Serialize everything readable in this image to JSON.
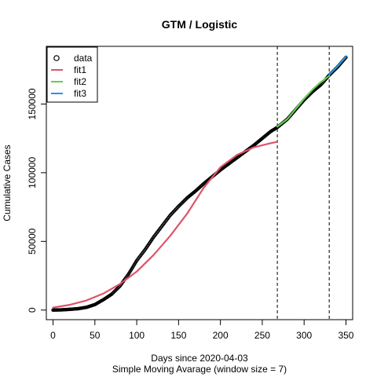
{
  "chart_data": {
    "type": "line",
    "title": "GTM / Logistic",
    "xlabel": "Days since 2020-04-03",
    "subtitle": "Simple Moving Avarage (window size = 7)",
    "ylabel": "Cumulative Cases",
    "xlim": [
      -8,
      358
    ],
    "ylim": [
      -7000,
      192000
    ],
    "x_ticks": [
      0,
      50,
      100,
      150,
      200,
      250,
      300,
      350
    ],
    "y_ticks": [
      0,
      50000,
      100000,
      150000
    ],
    "vlines": [
      268,
      330
    ],
    "legend": {
      "position": "top-left",
      "entries": [
        {
          "label": "data",
          "style": "circle",
          "color": "#000000"
        },
        {
          "label": "fit1",
          "style": "line",
          "color": "#DF536B"
        },
        {
          "label": "fit2",
          "style": "line",
          "color": "#61D04F"
        },
        {
          "label": "fit3",
          "style": "line",
          "color": "#2297E6"
        }
      ]
    },
    "series": [
      {
        "name": "data",
        "marker": "circle",
        "color": "#000000",
        "x": [
          0,
          10,
          20,
          30,
          40,
          50,
          60,
          70,
          80,
          90,
          100,
          110,
          120,
          130,
          140,
          150,
          160,
          170,
          180,
          190,
          200,
          210,
          220,
          230,
          240,
          250,
          260,
          268,
          280,
          290,
          300,
          310,
          320,
          330,
          340,
          350
        ],
        "y": [
          0,
          150,
          500,
          1000,
          2000,
          4000,
          7500,
          11500,
          17500,
          26000,
          36000,
          44000,
          53000,
          61000,
          69000,
          75500,
          81500,
          86500,
          92000,
          97000,
          102000,
          106500,
          111000,
          115500,
          120000,
          125000,
          130000,
          133000,
          139000,
          146000,
          153000,
          159000,
          164000,
          171000,
          177000,
          184000
        ]
      },
      {
        "name": "fit1",
        "color": "#DF536B",
        "x": [
          0,
          20,
          40,
          60,
          80,
          100,
          120,
          140,
          160,
          180,
          200,
          220,
          240,
          260,
          268
        ],
        "y": [
          1800,
          3800,
          7000,
          12000,
          19000,
          28000,
          40000,
          54000,
          70000,
          89000,
          104000,
          113000,
          118500,
          121500,
          122500
        ]
      },
      {
        "name": "fit2",
        "color": "#61D04F",
        "x": [
          268,
          280,
          290,
          300,
          310,
          320,
          330
        ],
        "y": [
          133500,
          139000,
          146500,
          154000,
          160500,
          166000,
          170500
        ]
      },
      {
        "name": "fit3",
        "color": "#2297E6",
        "x": [
          330,
          340,
          350
        ],
        "y": [
          171500,
          177500,
          184500
        ]
      }
    ]
  }
}
